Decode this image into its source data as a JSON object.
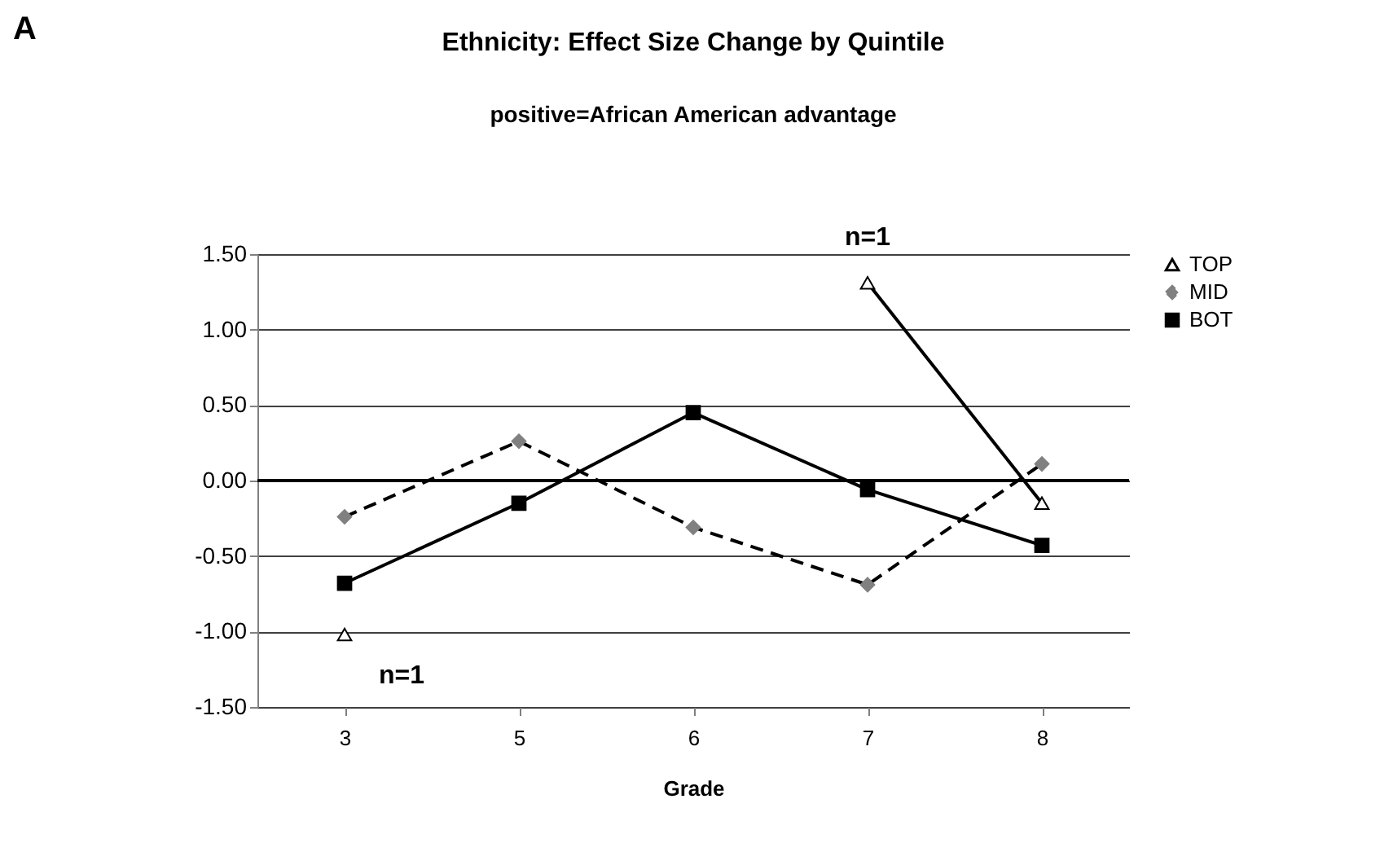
{
  "chart_data": {
    "type": "line",
    "title": "Ethnicity: Effect Size Change by Quintile",
    "subtitle": "positive=African American advantage",
    "xlabel": "Grade",
    "categories": [
      "3",
      "5",
      "6",
      "7",
      "8"
    ],
    "series": [
      {
        "name": "TOP",
        "color": "#000000",
        "marker": "triangle",
        "line_style": "solid",
        "values": [
          -1.02,
          null,
          null,
          1.31,
          -0.15
        ]
      },
      {
        "name": "MID",
        "color": "#808080",
        "marker": "diamond",
        "line_style": "dashed",
        "values": [
          -0.24,
          0.26,
          -0.31,
          -0.69,
          0.11
        ]
      },
      {
        "name": "BOT",
        "color": "#000000",
        "marker": "square",
        "line_style": "solid",
        "values": [
          -0.68,
          -0.15,
          0.45,
          -0.06,
          -0.43
        ]
      }
    ],
    "ylim": [
      -1.5,
      1.5
    ],
    "yticks": [
      {
        "value": -1.5,
        "label": "-1.50"
      },
      {
        "value": -1.0,
        "label": "-1.00"
      },
      {
        "value": -0.5,
        "label": "-0.50"
      },
      {
        "value": 0,
        "label": "0.00"
      },
      {
        "value": 0.5,
        "label": "0.50"
      },
      {
        "value": 1.0,
        "label": "1.00"
      },
      {
        "value": 1.5,
        "label": "1.50"
      }
    ],
    "ref_lines": [
      {
        "axis": "y",
        "value": 0,
        "label": null,
        "color": "#000000"
      }
    ],
    "annotations": [
      "A",
      {
        "text": "n=1",
        "x": "3",
        "y": -1.02
      },
      {
        "text": "n=1",
        "x": "7",
        "y": 1.31
      }
    ],
    "grid": "y",
    "legend": "right"
  }
}
